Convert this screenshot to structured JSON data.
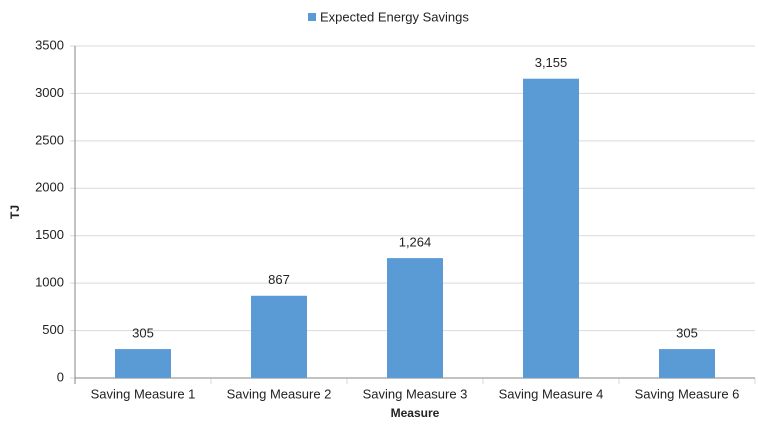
{
  "chart_data": {
    "type": "bar",
    "categories": [
      "Saving Measure 1",
      "Saving Measure 2",
      "Saving Measure 3",
      "Saving Measure 4",
      "Saving Measure 6"
    ],
    "series": [
      {
        "name": "Expected Energy Savings",
        "color": "#5b9bd5",
        "values": [
          305,
          867,
          1264,
          3155,
          305
        ],
        "value_labels": [
          "305",
          "867",
          "1,264",
          "3,155",
          "305"
        ]
      }
    ],
    "x_label": "Measure",
    "y_label": "TJ",
    "ylim": [
      0,
      3500
    ],
    "yticks": [
      0,
      500,
      1000,
      1500,
      2000,
      2500,
      3000,
      3500
    ],
    "grid": true,
    "legend": "top"
  }
}
